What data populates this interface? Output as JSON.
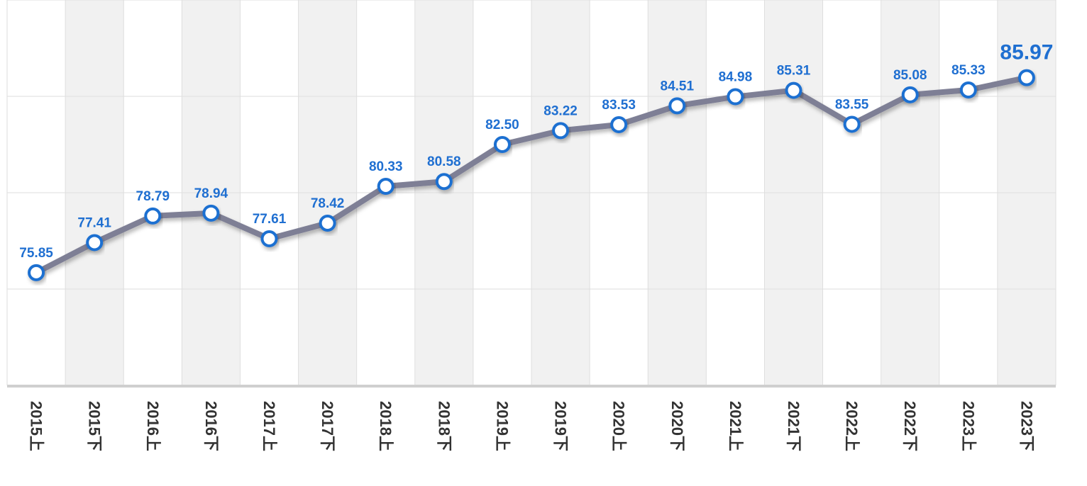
{
  "chart_data": {
    "type": "line",
    "title": "",
    "xlabel": "",
    "ylabel": "",
    "categories": [
      "2015上",
      "2015下",
      "2016上",
      "2016下",
      "2017上",
      "2017下",
      "2018上",
      "2018下",
      "2019上",
      "2019下",
      "2020上",
      "2020下",
      "2021上",
      "2021下",
      "2022上",
      "2022下",
      "2023上",
      "2023下"
    ],
    "series": [
      {
        "values": [
          75.85,
          77.41,
          78.79,
          78.94,
          77.61,
          78.42,
          80.33,
          80.58,
          82.5,
          83.22,
          83.53,
          84.51,
          84.98,
          85.31,
          83.55,
          85.08,
          85.33,
          85.97
        ],
        "labels": [
          "75.85",
          "77.41",
          "78.79",
          "78.94",
          "77.61",
          "78.42",
          "80.33",
          "80.58",
          "82.50",
          "83.22",
          "83.53",
          "84.51",
          "84.98",
          "85.31",
          "83.55",
          "85.08",
          "85.33",
          "85.97"
        ]
      }
    ],
    "ylim": [
      70,
      90
    ],
    "grid": true,
    "legend": "none",
    "colors": {
      "line": "#7e7f95",
      "marker_stroke": "#1f6fd1",
      "marker_fill": "#ffffff",
      "label": "#1f6fd1",
      "band": "#f1f1f1",
      "grid": "#dedede",
      "axis": "#cfcfcf",
      "tick": "#333333"
    }
  }
}
